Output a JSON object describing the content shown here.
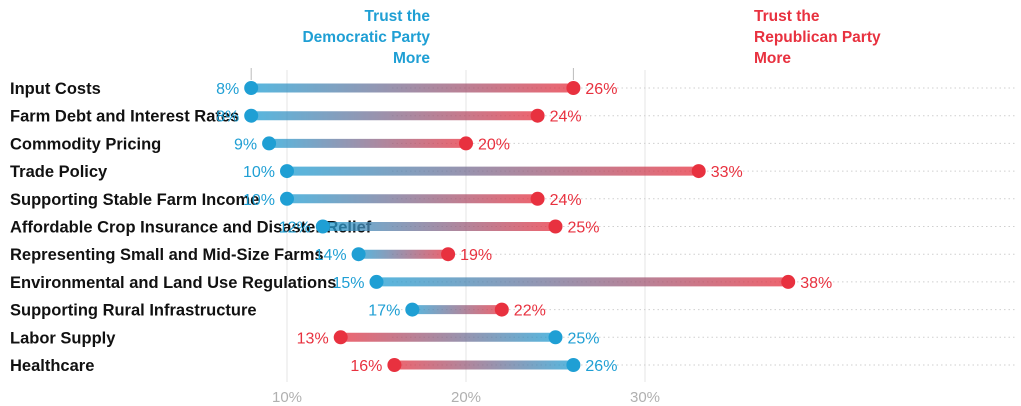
{
  "colors": {
    "democratic": "#1f9fd4",
    "republican": "#e8313f",
    "grid": "#e4e4e4"
  },
  "header": {
    "democratic": [
      "Trust the",
      "Democratic Party",
      "More"
    ],
    "republican": [
      "Trust the",
      "Republican Party",
      "More"
    ]
  },
  "chart_data": {
    "type": "dumbbell",
    "title": "",
    "xlabel": "",
    "ylabel": "",
    "x_ticks": [
      "10%",
      "20%",
      "30%"
    ],
    "xlim": [
      0,
      40
    ],
    "grid": true,
    "categories": [
      "Input Costs",
      "Farm Debt and Interest Rates",
      "Commodity Pricing",
      "Trade Policy",
      "Supporting Stable Farm Income",
      "Affordable Crop Insurance and Disaster Relief",
      "Representing Small and Mid-Size Farms",
      "Environmental and Land Use Regulations",
      "Supporting Rural Infrastructure",
      "Labor Supply",
      "Healthcare"
    ],
    "series": [
      {
        "name": "Trust the Democratic Party More",
        "values": [
          8,
          8,
          9,
          10,
          10,
          12,
          14,
          15,
          17,
          25,
          26
        ]
      },
      {
        "name": "Trust the Republican Party More",
        "values": [
          26,
          24,
          20,
          33,
          24,
          25,
          19,
          38,
          22,
          13,
          16
        ]
      }
    ]
  }
}
